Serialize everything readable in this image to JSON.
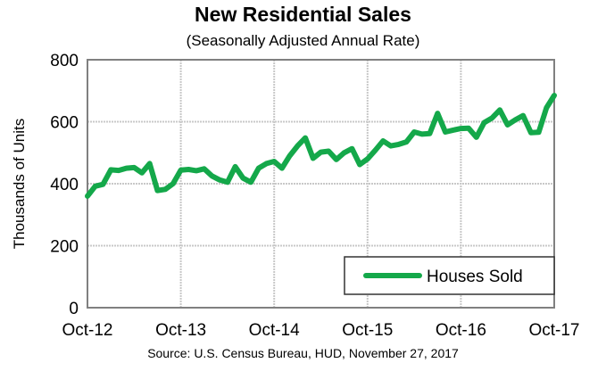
{
  "chart_data": {
    "type": "line",
    "title": "New Residential Sales",
    "subtitle": "(Seasonally Adjusted Annual Rate)",
    "ylabel": "Thousands of Units",
    "xlabel": "",
    "source": "Source:  U.S. Census Bureau, HUD, November 27, 2017",
    "ylim": [
      0,
      800
    ],
    "yticks": [
      "0",
      "200",
      "400",
      "600",
      "800"
    ],
    "xticks": [
      "Oct-12",
      "Oct-13",
      "Oct-14",
      "Oct-15",
      "Oct-16",
      "Oct-17"
    ],
    "grid": true,
    "legend_position": "bottom-right",
    "series": [
      {
        "name": "Houses Sold",
        "color": "#14a84a",
        "x_start": "Oct-12",
        "x_end": "Oct-17",
        "frequency": "monthly",
        "values": [
          360,
          392,
          398,
          445,
          443,
          450,
          452,
          435,
          465,
          378,
          382,
          400,
          444,
          446,
          442,
          448,
          425,
          412,
          405,
          455,
          418,
          405,
          450,
          465,
          472,
          450,
          490,
          522,
          548,
          482,
          502,
          505,
          478,
          500,
          513,
          462,
          480,
          508,
          538,
          522,
          527,
          535,
          567,
          560,
          562,
          627,
          567,
          573,
          578,
          579,
          550,
          597,
          612,
          638,
          590,
          606,
          620,
          565,
          566,
          645,
          685
        ]
      }
    ]
  }
}
